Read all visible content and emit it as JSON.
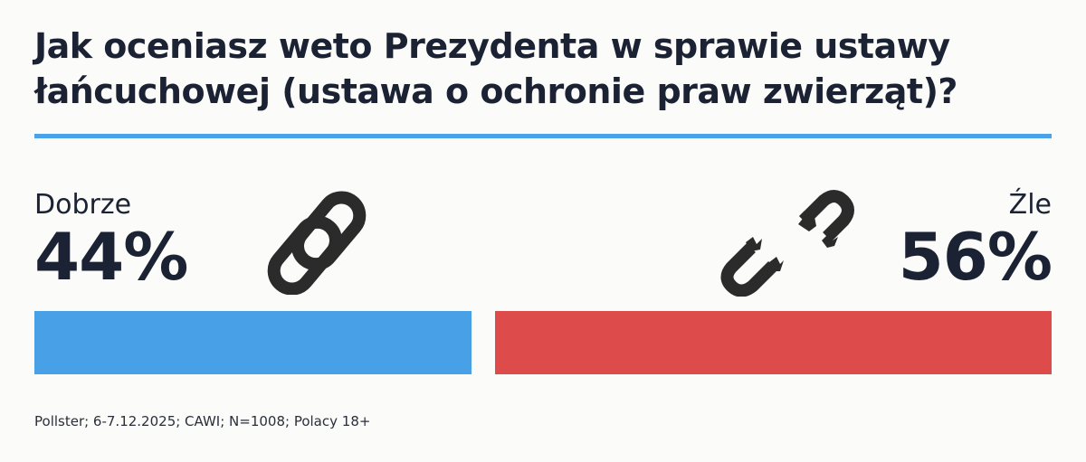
{
  "title": "Jak oceniasz weto Prezydenta w sprawie ustawy łańcuchowej (ustawa o ochronie praw zwierząt)?",
  "source": "Pollster; 6-7.12.2025; CAWI; N=1008; Polacy 18+",
  "colors": {
    "accent": "#4aa3e8",
    "dobrze": "#48a1e6",
    "zle": "#dd4b4b",
    "icon": "#2b2b2b",
    "text": "#1b2233"
  },
  "icons": {
    "left": "chain-link-icon",
    "right": "broken-chain-icon"
  },
  "chart_data": {
    "type": "bar",
    "title": "Jak oceniasz weto Prezydenta w sprawie ustawy łańcuchowej (ustawa o ochronie praw zwierząt)?",
    "categories": [
      "Dobrze",
      "Źle"
    ],
    "values": [
      44,
      56
    ],
    "value_labels": [
      "44%",
      "56%"
    ],
    "unit": "%",
    "ylim": [
      0,
      100
    ],
    "grid": false,
    "legend": "none"
  }
}
